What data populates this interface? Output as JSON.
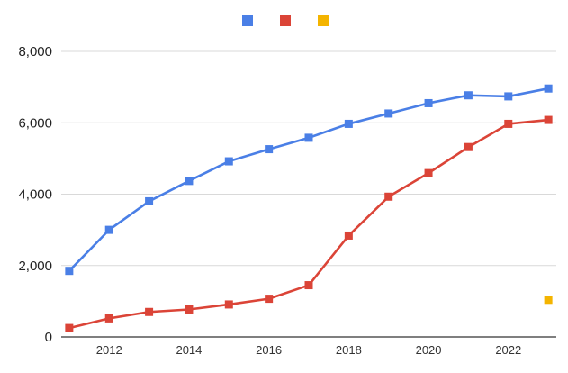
{
  "chart_data": {
    "type": "line",
    "title": "",
    "xlabel": "",
    "ylabel": "",
    "x": [
      2011,
      2012,
      2013,
      2014,
      2015,
      2016,
      2017,
      2018,
      2019,
      2020,
      2021,
      2022,
      2023
    ],
    "x_ticks": [
      "2012",
      "2014",
      "2016",
      "2018",
      "2020",
      "2022"
    ],
    "y_ticks": [
      "0",
      "2,000",
      "4,000",
      "6,000",
      "8,000"
    ],
    "ylim": [
      0,
      8000
    ],
    "grid": true,
    "legend": "top-center",
    "series": [
      {
        "color": "#4a7fe6",
        "values": [
          1850,
          3000,
          3800,
          4370,
          4920,
          5260,
          5580,
          5970,
          6260,
          6550,
          6770,
          6740,
          6960
        ]
      },
      {
        "color": "#db4437",
        "values": [
          250,
          520,
          700,
          770,
          910,
          1070,
          1450,
          2840,
          3930,
          4590,
          5320,
          5970,
          6080
        ]
      },
      {
        "color": "#f4b400",
        "values": [
          null,
          null,
          null,
          null,
          null,
          null,
          null,
          null,
          null,
          null,
          null,
          null,
          1040
        ]
      }
    ]
  }
}
